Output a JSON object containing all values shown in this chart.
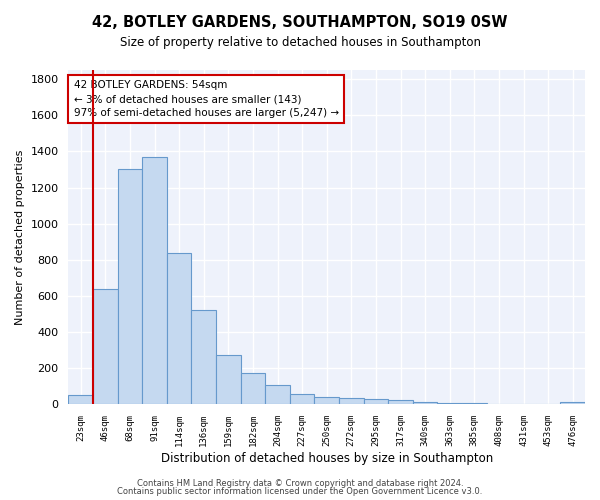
{
  "title": "42, BOTLEY GARDENS, SOUTHAMPTON, SO19 0SW",
  "subtitle": "Size of property relative to detached houses in Southampton",
  "xlabel": "Distribution of detached houses by size in Southampton",
  "ylabel": "Number of detached properties",
  "categories": [
    "23sqm",
    "46sqm",
    "68sqm",
    "91sqm",
    "114sqm",
    "136sqm",
    "159sqm",
    "182sqm",
    "204sqm",
    "227sqm",
    "250sqm",
    "272sqm",
    "295sqm",
    "317sqm",
    "340sqm",
    "363sqm",
    "385sqm",
    "408sqm",
    "431sqm",
    "453sqm",
    "476sqm"
  ],
  "values": [
    50,
    640,
    1305,
    1370,
    840,
    520,
    275,
    175,
    105,
    60,
    40,
    35,
    30,
    22,
    15,
    8,
    7,
    5,
    5,
    2,
    15
  ],
  "bar_color": "#c5d9f0",
  "bar_edge_color": "#6699cc",
  "vline_color": "#cc0000",
  "annotation_text": "42 BOTLEY GARDENS: 54sqm\n← 3% of detached houses are smaller (143)\n97% of semi-detached houses are larger (5,247) →",
  "annotation_box_color": "#cc0000",
  "ylim": [
    0,
    1850
  ],
  "yticks": [
    0,
    200,
    400,
    600,
    800,
    1000,
    1200,
    1400,
    1600,
    1800
  ],
  "bg_color": "#eef2fb",
  "grid_color": "#ffffff",
  "footer1": "Contains HM Land Registry data © Crown copyright and database right 2024.",
  "footer2": "Contains public sector information licensed under the Open Government Licence v3.0."
}
